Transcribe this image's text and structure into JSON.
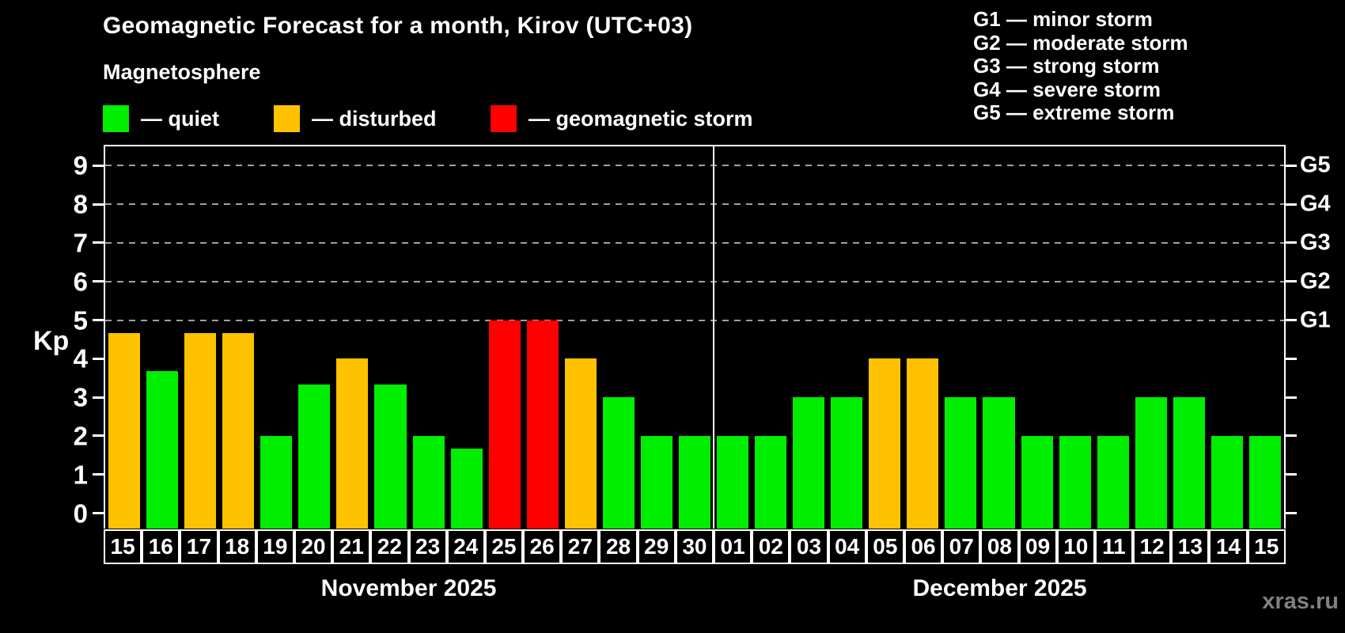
{
  "title": "Geomagnetic Forecast for a month, Kirov (UTC+03)",
  "subtitle": "Magnetosphere",
  "watermark": "xras.ru",
  "axis": {
    "kp_label": "Kp"
  },
  "legend": {
    "items": [
      {
        "status": "quiet",
        "label": "— quiet",
        "color": "#00ee00"
      },
      {
        "status": "disturbed",
        "label": "— disturbed",
        "color": "#ffc200"
      },
      {
        "status": "storm",
        "label": "— geomagnetic storm",
        "color": "#ff0000"
      }
    ]
  },
  "status_colors": {
    "quiet": "#00ee00",
    "disturbed": "#ffc200",
    "storm": "#ff0000"
  },
  "storm_scale_legend": [
    "G1 — minor storm",
    "G2 — moderate storm",
    "G3 — strong storm",
    "G4 — severe storm",
    "G5 — extreme storm"
  ],
  "months": [
    {
      "label": "November 2025",
      "days": [
        {
          "date": "15",
          "kp": 4.67,
          "status": "disturbed"
        },
        {
          "date": "16",
          "kp": 3.67,
          "status": "quiet"
        },
        {
          "date": "17",
          "kp": 4.67,
          "status": "disturbed"
        },
        {
          "date": "18",
          "kp": 4.67,
          "status": "disturbed"
        },
        {
          "date": "19",
          "kp": 2,
          "status": "quiet"
        },
        {
          "date": "20",
          "kp": 3.33,
          "status": "quiet"
        },
        {
          "date": "21",
          "kp": 4,
          "status": "disturbed"
        },
        {
          "date": "22",
          "kp": 3.33,
          "status": "quiet"
        },
        {
          "date": "23",
          "kp": 2,
          "status": "quiet"
        },
        {
          "date": "24",
          "kp": 1.67,
          "status": "quiet"
        },
        {
          "date": "25",
          "kp": 5,
          "status": "storm"
        },
        {
          "date": "26",
          "kp": 5,
          "status": "storm"
        },
        {
          "date": "27",
          "kp": 4,
          "status": "disturbed"
        },
        {
          "date": "28",
          "kp": 3,
          "status": "quiet"
        },
        {
          "date": "29",
          "kp": 2,
          "status": "quiet"
        },
        {
          "date": "30",
          "kp": 2,
          "status": "quiet"
        }
      ]
    },
    {
      "label": "December 2025",
      "days": [
        {
          "date": "01",
          "kp": 2,
          "status": "quiet"
        },
        {
          "date": "02",
          "kp": 2,
          "status": "quiet"
        },
        {
          "date": "03",
          "kp": 3,
          "status": "quiet"
        },
        {
          "date": "04",
          "kp": 3,
          "status": "quiet"
        },
        {
          "date": "05",
          "kp": 4,
          "status": "disturbed"
        },
        {
          "date": "06",
          "kp": 4,
          "status": "disturbed"
        },
        {
          "date": "07",
          "kp": 3,
          "status": "quiet"
        },
        {
          "date": "08",
          "kp": 3,
          "status": "quiet"
        },
        {
          "date": "09",
          "kp": 2,
          "status": "quiet"
        },
        {
          "date": "10",
          "kp": 2,
          "status": "quiet"
        },
        {
          "date": "11",
          "kp": 2,
          "status": "quiet"
        },
        {
          "date": "12",
          "kp": 3,
          "status": "quiet"
        },
        {
          "date": "13",
          "kp": 3,
          "status": "quiet"
        },
        {
          "date": "14",
          "kp": 2,
          "status": "quiet"
        },
        {
          "date": "15",
          "kp": 2,
          "status": "quiet"
        }
      ]
    }
  ],
  "chart_data": {
    "type": "bar",
    "title": "Geomagnetic Forecast for a month, Kirov (UTC+03)",
    "xlabel": "",
    "ylabel": "Kp",
    "ylim": [
      0,
      9
    ],
    "yticks": [
      0,
      1,
      2,
      3,
      4,
      5,
      6,
      7,
      8,
      9
    ],
    "gridlines": {
      "levels": [
        5,
        6,
        7,
        8,
        9
      ],
      "style": "dashed"
    },
    "right_axis": [
      {
        "kp": 5,
        "label": "G1"
      },
      {
        "kp": 6,
        "label": "G2"
      },
      {
        "kp": 7,
        "label": "G3"
      },
      {
        "kp": 8,
        "label": "G4"
      },
      {
        "kp": 9,
        "label": "G5"
      }
    ],
    "legend_position": "top-left",
    "categories": [
      "Nov 15",
      "Nov 16",
      "Nov 17",
      "Nov 18",
      "Nov 19",
      "Nov 20",
      "Nov 21",
      "Nov 22",
      "Nov 23",
      "Nov 24",
      "Nov 25",
      "Nov 26",
      "Nov 27",
      "Nov 28",
      "Nov 29",
      "Nov 30",
      "Dec 01",
      "Dec 02",
      "Dec 03",
      "Dec 04",
      "Dec 05",
      "Dec 06",
      "Dec 07",
      "Dec 08",
      "Dec 09",
      "Dec 10",
      "Dec 11",
      "Dec 12",
      "Dec 13",
      "Dec 14",
      "Dec 15"
    ],
    "values": [
      4.67,
      3.67,
      4.67,
      4.67,
      2,
      3.33,
      4,
      3.33,
      2,
      1.67,
      5,
      5,
      4,
      3,
      2,
      2,
      2,
      2,
      3,
      3,
      4,
      4,
      3,
      3,
      2,
      2,
      2,
      3,
      3,
      2,
      2
    ],
    "statuses": [
      "disturbed",
      "quiet",
      "disturbed",
      "disturbed",
      "quiet",
      "quiet",
      "disturbed",
      "quiet",
      "quiet",
      "quiet",
      "storm",
      "storm",
      "disturbed",
      "quiet",
      "quiet",
      "quiet",
      "quiet",
      "quiet",
      "quiet",
      "quiet",
      "disturbed",
      "disturbed",
      "quiet",
      "quiet",
      "quiet",
      "quiet",
      "quiet",
      "quiet",
      "quiet",
      "quiet",
      "quiet"
    ]
  }
}
